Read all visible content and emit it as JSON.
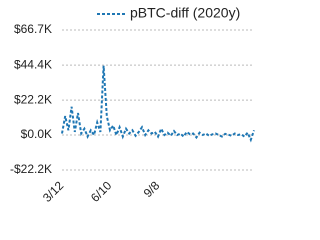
{
  "chart_data": {
    "type": "line",
    "categories": [
      "3/12",
      null,
      null,
      null,
      null,
      null,
      null,
      null,
      null,
      null,
      null,
      null,
      null,
      null,
      null,
      "6/10",
      null,
      null,
      null,
      null,
      null,
      null,
      null,
      null,
      null,
      null,
      null,
      null,
      null,
      null,
      "9/8",
      null,
      null,
      null,
      null,
      null,
      null,
      null,
      null,
      null,
      null,
      null,
      null,
      null,
      null,
      null,
      null,
      null,
      null,
      null,
      null,
      null,
      null,
      null,
      null,
      null,
      null,
      null,
      null,
      null,
      null
    ],
    "series": [
      {
        "name": "pBTC-diff (2020y)",
        "color": "#1f77b4",
        "values": [
          1000,
          12000,
          3000,
          18000,
          2000,
          14000,
          1000,
          4000,
          -1000,
          3000,
          0,
          8000,
          2000,
          44000,
          12000,
          3000,
          6000,
          0,
          5000,
          -1000,
          4000,
          1000,
          3000,
          -500,
          2000,
          5000,
          0,
          3000,
          1000,
          2000,
          -1000,
          4000,
          0,
          1500,
          -500,
          2500,
          0,
          1000,
          -1000,
          2000,
          500,
          1000,
          -1500,
          1500,
          0,
          1000,
          -500,
          500,
          1000,
          0,
          -1000,
          800,
          200,
          -500,
          1000,
          0,
          500,
          -1000,
          1500,
          -3000,
          3000
        ]
      }
    ],
    "ylim": [
      -22200,
      66700
    ],
    "yticks": [
      {
        "value": -22200,
        "label": "-$22.2K"
      },
      {
        "value": 0,
        "label": "$0.0K"
      },
      {
        "value": 22200,
        "label": "$22.2K"
      },
      {
        "value": 44400,
        "label": "$44.4K"
      },
      {
        "value": 66700,
        "label": "$66.7K"
      }
    ],
    "grid": true,
    "legend": "top-right"
  }
}
